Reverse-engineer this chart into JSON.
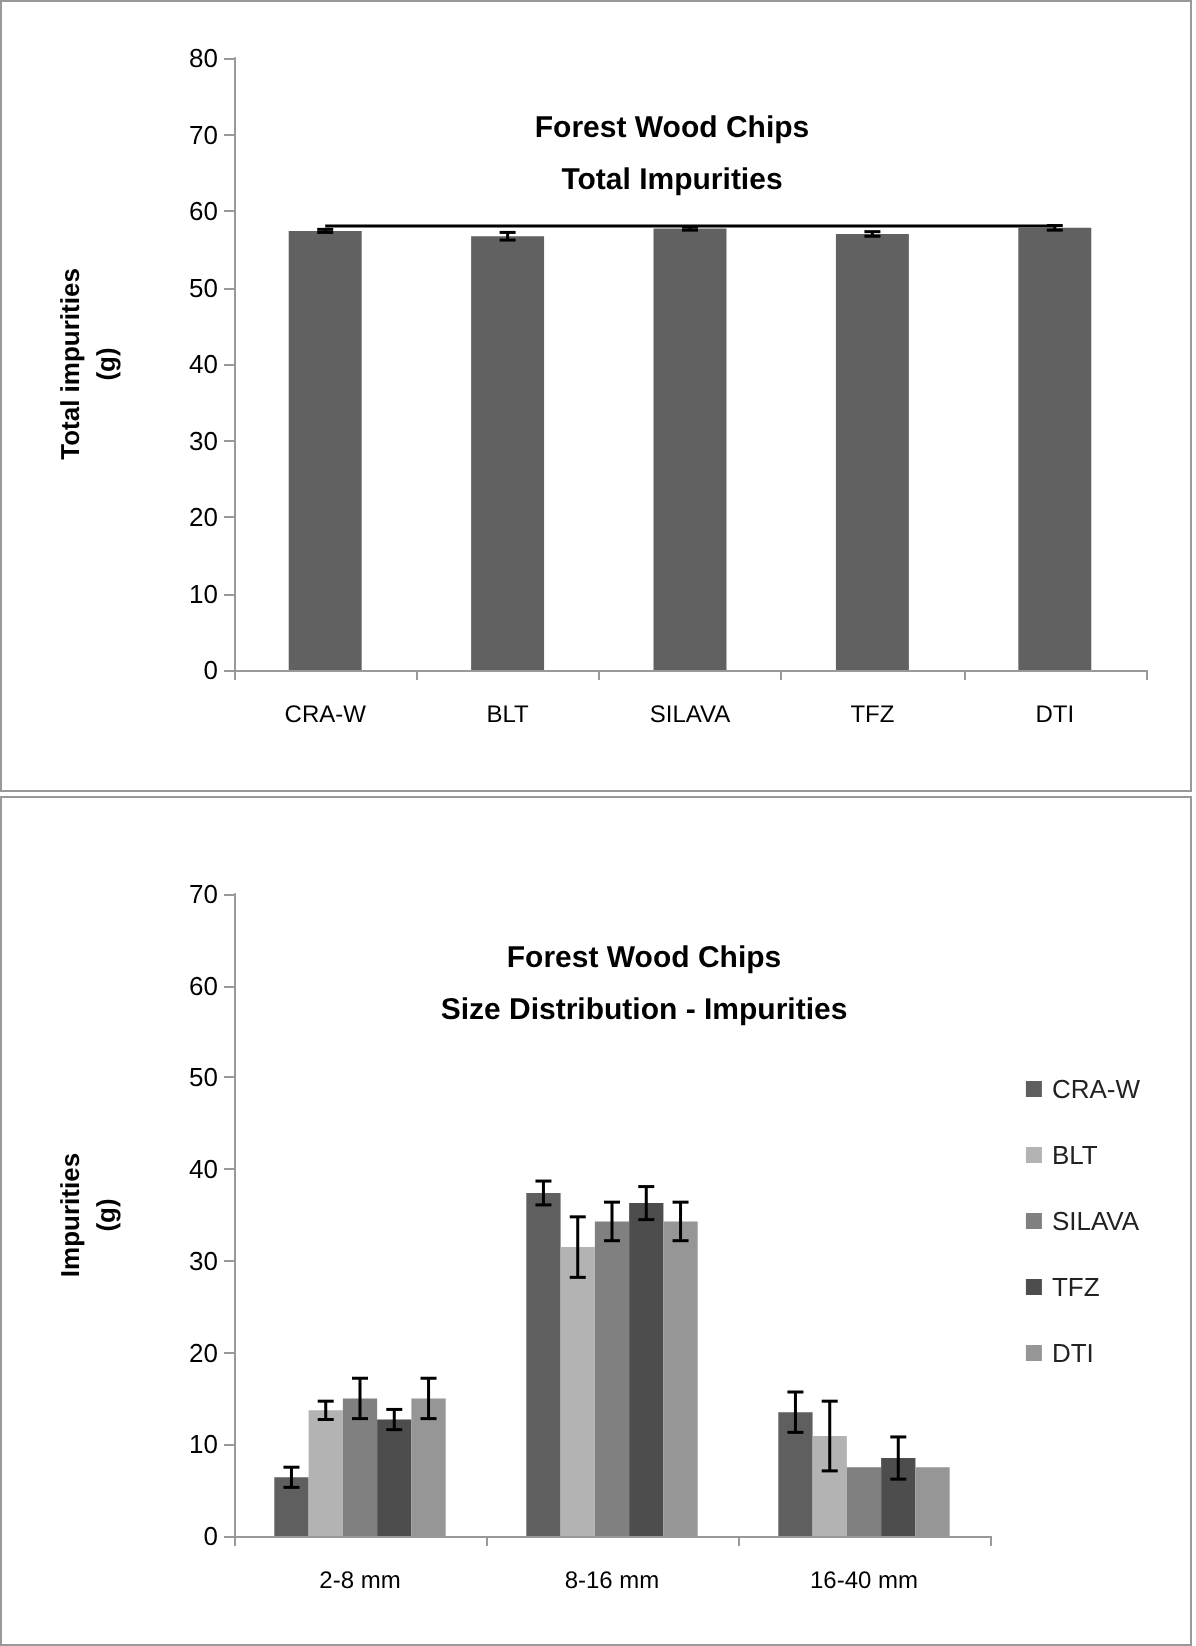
{
  "chart_data": [
    {
      "type": "bar",
      "title": "Forest Wood Chips\nTotal Impurities",
      "ylabel": "Total impurities\n(g)",
      "categories": [
        "CRA-W",
        "BLT",
        "SILAVA",
        "TFZ",
        "DTI"
      ],
      "series": [
        {
          "color": "#616161",
          "values": [
            57.4,
            56.7,
            57.7,
            57.0,
            57.8
          ],
          "errors": [
            0.2,
            0.5,
            0.2,
            0.3,
            0.3
          ]
        }
      ],
      "ylim": [
        0,
        80
      ],
      "yticks": [
        0,
        10,
        20,
        30,
        40,
        50,
        60,
        70,
        80
      ],
      "grid": false,
      "legend": false,
      "ref_lines": [
        {
          "axis": "y",
          "value": 58.1,
          "color": "#000000"
        }
      ]
    },
    {
      "type": "bar",
      "title": "Forest Wood Chips\nSize Distribution - Impurities",
      "ylabel": "Impurities\n(g)",
      "categories": [
        "2-8 mm",
        "8-16 mm",
        "16-40 mm"
      ],
      "series": [
        {
          "name": "CRA-W",
          "color": "#5f5f5f",
          "values": [
            6.4,
            37.4,
            13.5
          ],
          "errors": [
            1.1,
            1.3,
            2.2
          ]
        },
        {
          "name": "BLT",
          "color": "#b3b3b3",
          "values": [
            13.7,
            31.5,
            10.9
          ],
          "errors": [
            1.0,
            3.3,
            3.8
          ]
        },
        {
          "name": "SILAVA",
          "color": "#808080",
          "values": [
            15.0,
            34.3,
            7.5
          ],
          "errors": [
            2.2,
            2.1,
            null
          ]
        },
        {
          "name": "TFZ",
          "color": "#4d4d4d",
          "values": [
            12.7,
            36.3,
            8.5
          ],
          "errors": [
            1.1,
            1.8,
            2.3
          ]
        },
        {
          "name": "DTI",
          "color": "#969696",
          "values": [
            15.0,
            34.3,
            7.5
          ],
          "errors": [
            2.2,
            2.1,
            null
          ]
        }
      ],
      "ylim": [
        0,
        70
      ],
      "yticks": [
        0,
        10,
        20,
        30,
        40,
        50,
        60,
        70
      ],
      "grid": false,
      "legend": "right"
    }
  ]
}
